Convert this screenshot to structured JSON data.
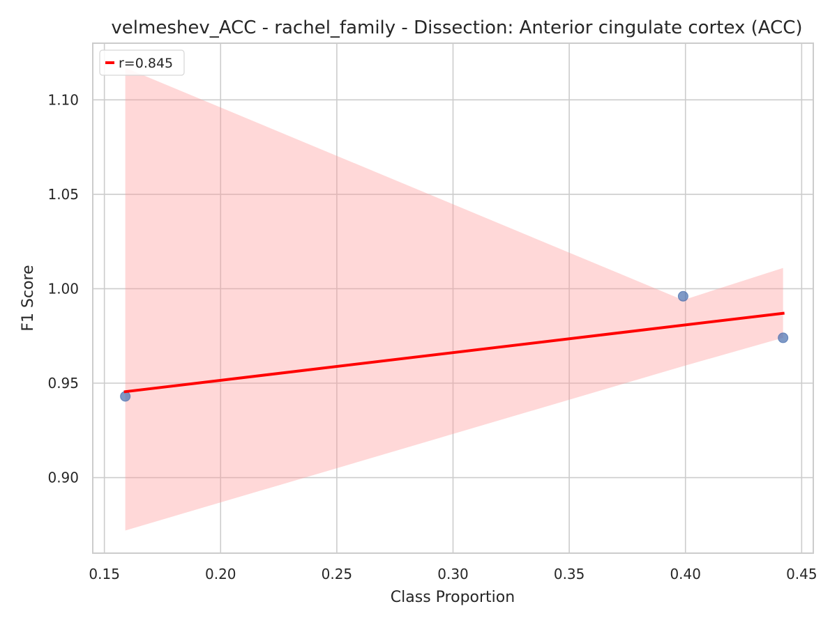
{
  "chart_data": {
    "type": "scatter",
    "title": "velmeshev_ACC - rachel_family - Dissection: Anterior cingulate cortex (ACC)",
    "xlabel": "Class Proportion",
    "ylabel": "F1 Score",
    "xlim": [
      0.145,
      0.455
    ],
    "ylim": [
      0.86,
      1.13
    ],
    "xticks": [
      0.15,
      0.2,
      0.25,
      0.3,
      0.35,
      0.4,
      0.45
    ],
    "yticks": [
      0.9,
      0.95,
      1.0,
      1.05,
      1.1
    ],
    "xtick_labels": [
      "0.15",
      "0.20",
      "0.25",
      "0.30",
      "0.35",
      "0.40",
      "0.45"
    ],
    "ytick_labels": [
      "0.90",
      "0.95",
      "1.00",
      "1.05",
      "1.10"
    ],
    "grid": true,
    "legend_position": "top-left",
    "points": {
      "x": [
        0.159,
        0.399,
        0.442
      ],
      "y": [
        0.943,
        0.996,
        0.974
      ],
      "color": "#4c72b0"
    },
    "regression": {
      "label": "r=0.845",
      "color": "#ff0000",
      "x": [
        0.159,
        0.442
      ],
      "y": [
        0.9455,
        0.987
      ]
    },
    "confidence_band": {
      "color": "#ff9999",
      "x": [
        0.159,
        0.399,
        0.442
      ],
      "upper": [
        1.117,
        0.994,
        1.011
      ],
      "lower": [
        0.872,
        0.959,
        0.974
      ]
    }
  }
}
